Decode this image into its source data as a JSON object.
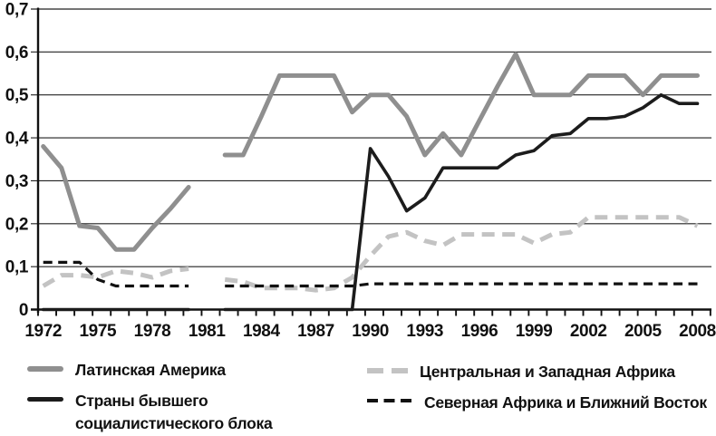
{
  "figure": {
    "background": "#ffffff",
    "text_color": "#111111",
    "grid_color": "#222222"
  },
  "chart_data": {
    "type": "line",
    "title": "",
    "xlabel": "",
    "ylabel": "",
    "grid": true,
    "legend_position": "bottom",
    "legend_columns": 2,
    "ylim": [
      0,
      0.7
    ],
    "y_tick_labels": [
      "0",
      "0,1",
      "0,2",
      "0,3",
      "0,4",
      "0,5",
      "0,6",
      "0,7"
    ],
    "x_tick_labels": [
      "1972",
      "1975",
      "1978",
      "1981",
      "1984",
      "1987",
      "1990",
      "1993",
      "1996",
      "1999",
      "2002",
      "2005",
      "2008"
    ],
    "x": [
      1972,
      1973,
      1974,
      1975,
      1976,
      1977,
      1978,
      1979,
      1980,
      1981,
      1982,
      1983,
      1984,
      1985,
      1986,
      1987,
      1988,
      1989,
      1990,
      1991,
      1992,
      1993,
      1994,
      1995,
      1996,
      1997,
      1998,
      1999,
      2000,
      2001,
      2002,
      2003,
      2004,
      2005,
      2006,
      2007,
      2008
    ],
    "data_gap_year": 1981,
    "series": [
      {
        "id": "latin-america",
        "name": "Латинская Америка",
        "color": "#8f8f8f",
        "style": "solid",
        "values": [
          0.38,
          0.33,
          0.195,
          0.19,
          0.14,
          0.14,
          0.19,
          0.235,
          0.285,
          null,
          0.36,
          0.36,
          0.45,
          0.545,
          0.545,
          0.545,
          0.545,
          0.46,
          0.5,
          0.5,
          0.45,
          0.36,
          0.41,
          0.36,
          0.44,
          0.52,
          0.595,
          0.5,
          0.5,
          0.5,
          0.545,
          0.545,
          0.545,
          0.5,
          0.545,
          0.545,
          0.545
        ]
      },
      {
        "id": "socialist-bloc",
        "name": "Страны бывшего социалистического блока",
        "color": "#1c1c1c",
        "style": "solid",
        "values": [
          0,
          0,
          0,
          0,
          0,
          0,
          0,
          0,
          0,
          null,
          0,
          0,
          0,
          0,
          0,
          0,
          0,
          0,
          0.375,
          0.31,
          0.23,
          0.26,
          0.33,
          0.33,
          0.33,
          0.33,
          0.36,
          0.37,
          0.405,
          0.41,
          0.445,
          0.445,
          0.45,
          0.47,
          0.5,
          0.48,
          0.48
        ]
      },
      {
        "id": "central-west-africa",
        "name": "Центральная и Западная Африка",
        "color": "#c3c3c3",
        "style": "dashed",
        "values": [
          0.055,
          0.08,
          0.08,
          0.075,
          0.09,
          0.085,
          0.075,
          0.09,
          0.095,
          null,
          0.07,
          0.065,
          0.05,
          0.05,
          0.05,
          0.045,
          0.05,
          0.075,
          0.125,
          0.17,
          0.18,
          0.16,
          0.15,
          0.175,
          0.175,
          0.175,
          0.175,
          0.155,
          0.175,
          0.18,
          0.215,
          0.215,
          0.215,
          0.215,
          0.215,
          0.215,
          0.195
        ]
      },
      {
        "id": "north-africa-middle-east",
        "name": "Северная Африка и Ближний Восток",
        "color": "#111111",
        "style": "dashed",
        "values": [
          0.11,
          0.11,
          0.11,
          0.07,
          0.055,
          0.055,
          0.055,
          0.055,
          0.055,
          null,
          0.055,
          0.055,
          0.055,
          0.055,
          0.055,
          0.055,
          0.055,
          0.055,
          0.06,
          0.06,
          0.06,
          0.06,
          0.06,
          0.06,
          0.06,
          0.06,
          0.06,
          0.06,
          0.06,
          0.06,
          0.06,
          0.06,
          0.06,
          0.06,
          0.06,
          0.06,
          0.06
        ]
      }
    ]
  }
}
